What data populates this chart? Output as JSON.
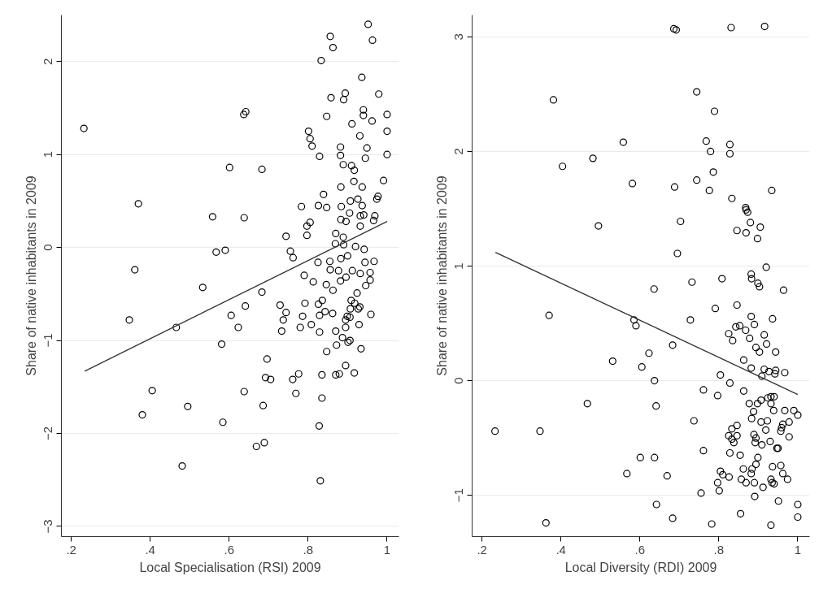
{
  "chart_data": [
    {
      "type": "scatter",
      "xlabel": "Local Specialisation (RSI) 2009",
      "ylabel": "Share of native inhabitants in 2009",
      "xlim": [
        0.175,
        1.03
      ],
      "ylim": [
        -3.11,
        2.5
      ],
      "xticks": [
        {
          "value": 0.2,
          "label": ".2"
        },
        {
          "value": 0.4,
          "label": ".4"
        },
        {
          "value": 0.6,
          "label": ".6"
        },
        {
          "value": 0.8,
          "label": ".8"
        },
        1
      ],
      "yticks": [
        -3,
        -2,
        -1,
        0,
        1,
        2
      ],
      "grid": "y",
      "series": [
        {
          "marker": "circle",
          "color": "#000000",
          "x": [
            0.952,
            0.856,
            0.963,
            0.863,
            0.833,
            0.936,
            0.894,
            0.979,
            0.858,
            0.89,
            0.642,
            0.637,
            0.94,
            0.94,
            1.0,
            0.847,
            0.962,
            0.911,
            0.232,
            1.0,
            0.801,
            0.931,
            0.805,
            0.81,
            0.882,
            0.949,
            0.829,
            0.882,
            0.945,
            1.0,
            0.889,
            0.91,
            0.917,
            0.601,
            0.683,
            0.991,
            0.916,
            0.883,
            0.937,
            0.839,
            0.977,
            0.974,
            0.37,
            0.783,
            0.826,
            0.847,
            0.884,
            0.907,
            0.926,
            0.937,
            0.905,
            0.932,
            0.941,
            0.969,
            0.966,
            0.558,
            0.638,
            0.883,
            0.896,
            0.805,
            0.797,
            0.932,
            0.744,
            0.797,
            0.87,
            0.889,
            0.869,
            0.89,
            0.92,
            0.942,
            0.755,
            0.762,
            0.567,
            0.59,
            0.361,
            0.825,
            0.855,
            0.883,
            0.9,
            0.944,
            0.967,
            0.856,
            0.877,
            0.912,
            0.932,
            0.957,
            0.79,
            0.813,
            0.846,
            0.882,
            0.896,
            0.957,
            0.946,
            0.533,
            0.863,
            0.683,
            0.924,
            0.836,
            0.826,
            0.792,
            0.909,
            0.918,
            0.729,
            0.641,
            0.907,
            0.931,
            0.927,
            0.862,
            0.843,
            0.744,
            0.605,
            0.786,
            0.829,
            0.899,
            0.906,
            0.959,
            0.347,
            0.466,
            0.623,
            0.737,
            0.78,
            0.808,
            0.895,
            0.895,
            0.929,
            0.733,
            0.829,
            0.87,
            0.887,
            0.901,
            0.906,
            0.581,
            0.872,
            0.847,
            0.934,
            0.696,
            0.895,
            0.776,
            0.87,
            0.879,
            0.835,
            0.917,
            0.692,
            0.705,
            0.761,
            0.405,
            0.638,
            0.769,
            0.835,
            0.495,
            0.686,
            0.38,
            0.584,
            0.828,
            0.689,
            0.669,
            0.481,
            0.831
          ],
          "values": [
            2.4,
            2.27,
            2.23,
            2.15,
            2.01,
            1.83,
            1.66,
            1.65,
            1.61,
            1.59,
            1.46,
            1.43,
            1.48,
            1.42,
            1.43,
            1.41,
            1.36,
            1.33,
            1.28,
            1.25,
            1.25,
            1.2,
            1.17,
            1.09,
            1.08,
            1.07,
            0.98,
            0.99,
            0.96,
            1.0,
            0.89,
            0.88,
            0.83,
            0.86,
            0.84,
            0.72,
            0.71,
            0.65,
            0.65,
            0.57,
            0.55,
            0.52,
            0.47,
            0.44,
            0.45,
            0.43,
            0.44,
            0.5,
            0.52,
            0.45,
            0.37,
            0.34,
            0.35,
            0.34,
            0.29,
            0.33,
            0.32,
            0.3,
            0.28,
            0.27,
            0.23,
            0.23,
            0.12,
            0.13,
            0.15,
            0.11,
            0.04,
            0.03,
            0.01,
            -0.02,
            -0.04,
            -0.11,
            -0.05,
            -0.03,
            -0.24,
            -0.16,
            -0.15,
            -0.12,
            -0.09,
            -0.16,
            -0.15,
            -0.24,
            -0.25,
            -0.25,
            -0.28,
            -0.27,
            -0.3,
            -0.37,
            -0.4,
            -0.36,
            -0.32,
            -0.35,
            -0.41,
            -0.43,
            -0.46,
            -0.48,
            -0.49,
            -0.57,
            -0.61,
            -0.6,
            -0.57,
            -0.6,
            -0.62,
            -0.63,
            -0.66,
            -0.64,
            -0.66,
            -0.71,
            -0.69,
            -0.7,
            -0.73,
            -0.74,
            -0.73,
            -0.74,
            -0.75,
            -0.72,
            -0.78,
            -0.86,
            -0.86,
            -0.78,
            -0.86,
            -0.83,
            -0.78,
            -0.86,
            -0.83,
            -0.9,
            -0.91,
            -0.9,
            -0.97,
            -1.02,
            -1.0,
            -1.04,
            -1.05,
            -1.12,
            -1.09,
            -1.2,
            -1.27,
            -1.36,
            -1.37,
            -1.36,
            -1.37,
            -1.35,
            -1.4,
            -1.42,
            -1.42,
            -1.54,
            -1.55,
            -1.57,
            -1.62,
            -1.71,
            -1.7,
            -1.8,
            -1.88,
            -1.92,
            -2.1,
            -2.14,
            -2.35,
            -2.51
          ]
        },
        {
          "type": "line",
          "color": "#333333",
          "x": [
            0.234,
            1.0
          ],
          "values": [
            -1.33,
            0.28
          ]
        }
      ]
    },
    {
      "type": "scatter",
      "xlabel": "Local Diversity (RDI) 2009",
      "ylabel": "Share of native inhabitants in 2009",
      "xlim": [
        0.175,
        1.03
      ],
      "ylim": [
        -1.36,
        3.19
      ],
      "xticks": [
        {
          "value": 0.2,
          "label": ".2"
        },
        {
          "value": 0.4,
          "label": ".4"
        },
        {
          "value": 0.6,
          "label": ".6"
        },
        {
          "value": 0.8,
          "label": ".8"
        },
        1
      ],
      "yticks": [
        -1,
        0,
        1,
        2,
        3
      ],
      "grid": "y",
      "series": [
        {
          "marker": "circle",
          "color": "#000000",
          "x": [
            0.686,
            0.692,
            0.831,
            0.916,
            0.381,
            0.744,
            0.789,
            0.558,
            0.768,
            0.828,
            0.779,
            0.828,
            0.481,
            0.404,
            0.786,
            0.744,
            0.581,
            0.688,
            0.776,
            0.934,
            0.833,
            0.868,
            0.869,
            0.873,
            0.495,
            0.703,
            0.88,
            0.905,
            0.846,
            0.869,
            0.898,
            0.695,
            0.92,
            0.882,
            0.883,
            0.808,
            0.732,
            0.899,
            0.903,
            0.636,
            0.964,
            0.846,
            0.791,
            0.37,
            0.585,
            0.59,
            0.728,
            0.882,
            0.89,
            0.936,
            0.853,
            0.843,
            0.868,
            0.825,
            0.835,
            0.878,
            0.915,
            0.683,
            0.894,
            0.903,
            0.921,
            0.944,
            0.623,
            0.531,
            0.605,
            0.863,
            0.882,
            0.915,
            0.927,
            0.944,
            0.942,
            0.967,
            0.909,
            0.637,
            0.804,
            0.828,
            0.761,
            0.797,
            0.863,
            0.467,
            0.641,
            0.877,
            0.898,
            0.907,
            0.924,
            0.932,
            0.94,
            0.932,
            0.939,
            0.888,
            0.967,
            0.99,
            1.0,
            0.883,
            0.907,
            0.923,
            0.737,
            0.978,
            0.962,
            0.959,
            0.957,
            0.233,
            0.347,
            0.846,
            0.833,
            0.919,
            0.825,
            0.846,
            0.833,
            0.838,
            0.889,
            0.894,
            0.892,
            0.909,
            0.93,
            0.978,
            0.947,
            0.95,
            0.761,
            0.828,
            0.854,
            0.601,
            0.637,
            0.899,
            0.894,
            0.862,
            0.884,
            0.882,
            0.936,
            0.957,
            0.804,
            0.81,
            0.826,
            0.567,
            0.669,
            0.857,
            0.869,
            0.89,
            0.932,
            0.935,
            0.94,
            0.962,
            0.974,
            0.797,
            0.801,
            0.912,
            0.755,
            0.891,
            0.642,
            0.951,
            1.0,
            0.855,
            1.0,
            0.683,
            0.362,
            0.782,
            0.932
          ],
          "values": [
            3.07,
            3.06,
            3.08,
            3.09,
            2.45,
            2.52,
            2.35,
            2.08,
            2.09,
            2.06,
            2.0,
            1.98,
            1.94,
            1.87,
            1.82,
            1.75,
            1.72,
            1.69,
            1.66,
            1.66,
            1.59,
            1.51,
            1.49,
            1.47,
            1.35,
            1.39,
            1.38,
            1.34,
            1.31,
            1.29,
            1.24,
            1.11,
            0.99,
            0.93,
            0.89,
            0.89,
            0.86,
            0.85,
            0.82,
            0.8,
            0.79,
            0.66,
            0.63,
            0.57,
            0.53,
            0.48,
            0.53,
            0.56,
            0.49,
            0.54,
            0.48,
            0.47,
            0.44,
            0.41,
            0.35,
            0.37,
            0.4,
            0.31,
            0.29,
            0.25,
            0.32,
            0.25,
            0.24,
            0.17,
            0.12,
            0.18,
            0.11,
            0.1,
            0.08,
            0.09,
            0.06,
            0.07,
            0.04,
            0.0,
            0.05,
            -0.02,
            -0.08,
            -0.13,
            -0.09,
            -0.2,
            -0.22,
            -0.2,
            -0.2,
            -0.17,
            -0.15,
            -0.14,
            -0.14,
            -0.2,
            -0.26,
            -0.27,
            -0.26,
            -0.26,
            -0.3,
            -0.33,
            -0.36,
            -0.35,
            -0.35,
            -0.36,
            -0.38,
            -0.41,
            -0.44,
            -0.44,
            -0.44,
            -0.39,
            -0.42,
            -0.43,
            -0.48,
            -0.48,
            -0.51,
            -0.54,
            -0.47,
            -0.5,
            -0.54,
            -0.56,
            -0.53,
            -0.49,
            -0.59,
            -0.59,
            -0.61,
            -0.63,
            -0.65,
            -0.67,
            -0.67,
            -0.67,
            -0.73,
            -0.77,
            -0.77,
            -0.81,
            -0.75,
            -0.74,
            -0.79,
            -0.82,
            -0.84,
            -0.81,
            -0.83,
            -0.86,
            -0.89,
            -0.89,
            -0.86,
            -0.89,
            -0.9,
            -0.81,
            -0.86,
            -0.89,
            -0.96,
            -0.93,
            -0.98,
            -1.01,
            -1.08,
            -1.05,
            -1.08,
            -1.16,
            -1.19,
            -1.2,
            -1.24,
            -1.25,
            -1.26
          ]
        },
        {
          "type": "line",
          "color": "#333333",
          "x": [
            0.234,
            1.0
          ],
          "values": [
            1.12,
            -0.12
          ]
        }
      ]
    }
  ]
}
